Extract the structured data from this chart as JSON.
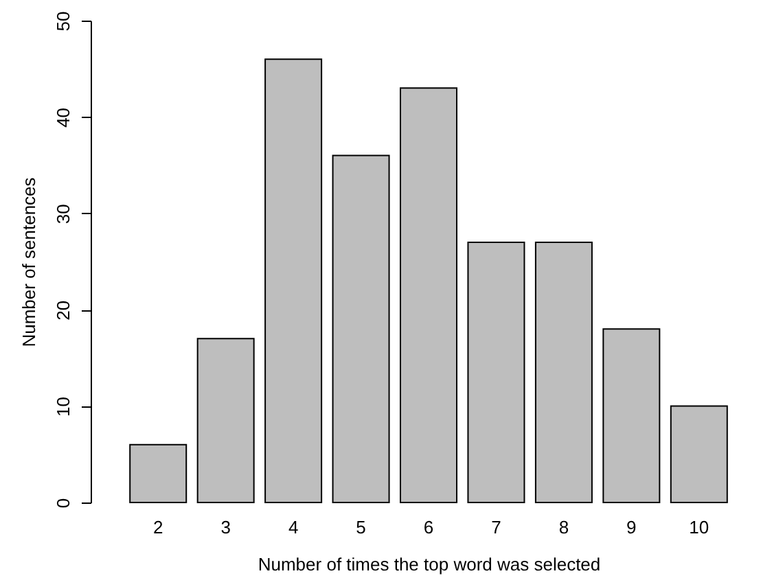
{
  "chart_data": {
    "type": "bar",
    "xlabel": "Number of times the top word was selected",
    "ylabel": "Number of sentences",
    "categories": [
      "2",
      "3",
      "4",
      "5",
      "6",
      "7",
      "8",
      "9",
      "10"
    ],
    "values": [
      6,
      17,
      46,
      36,
      43,
      27,
      27,
      18,
      10
    ],
    "color": "#bebebe",
    "ylim": [
      0,
      50
    ],
    "yticks": [
      0,
      10,
      20,
      30,
      40,
      50
    ],
    "grid": false
  }
}
